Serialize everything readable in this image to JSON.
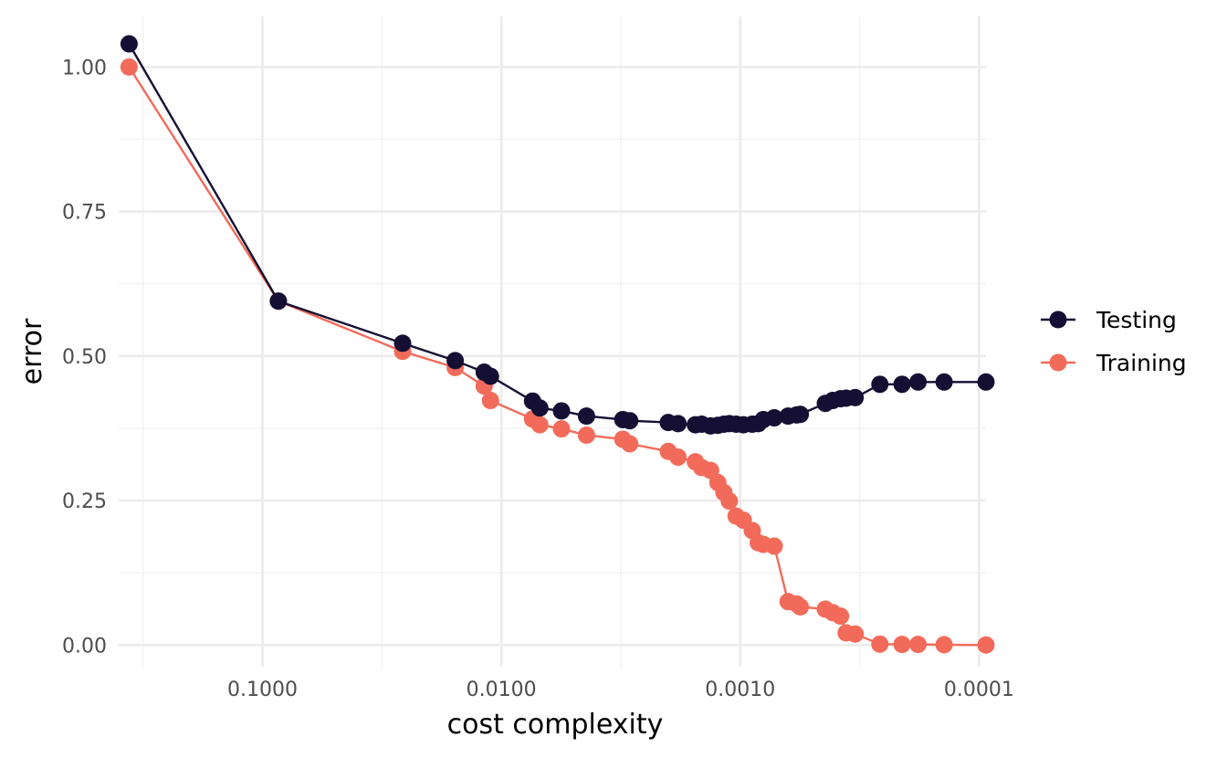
{
  "chart_data": {
    "type": "line",
    "xlabel": "cost complexity",
    "ylabel": "error",
    "x_scale": "log10-reversed",
    "xlim": [
      0.4,
      9.35e-05
    ],
    "ylim": [
      -0.0375,
      1.0875
    ],
    "x_ticks": [
      {
        "value": 0.1,
        "label": "0.1000"
      },
      {
        "value": 0.01,
        "label": "0.0100"
      },
      {
        "value": 0.001,
        "label": "0.0010"
      },
      {
        "value": 0.0001,
        "label": "0.0001"
      }
    ],
    "x_minor_ticks": [
      0.316,
      0.0316,
      0.00316,
      0.000316
    ],
    "y_ticks": [
      {
        "value": 0,
        "label": "0.00"
      },
      {
        "value": 0.25,
        "label": "0.25"
      },
      {
        "value": 0.5,
        "label": "0.50"
      },
      {
        "value": 0.75,
        "label": "0.75"
      },
      {
        "value": 1,
        "label": "1.00"
      }
    ],
    "y_minor_ticks": [
      0.125,
      0.375,
      0.625,
      0.875
    ],
    "grid": true,
    "legend_position": "right",
    "series": [
      {
        "name": "Testing",
        "color": "#140f33",
        "x": [
          0.3618,
          0.0858,
          0.0259,
          0.0156,
          0.0118,
          0.0111,
          0.0074,
          0.0069,
          0.0056,
          0.0044,
          0.0031,
          0.0029,
          0.002,
          0.00182,
          0.00154,
          0.00145,
          0.00133,
          0.00124,
          0.00117,
          0.00111,
          0.00104,
          0.00097,
          0.00089,
          0.00084,
          0.0008,
          0.00072,
          0.00063,
          0.00058,
          0.00056,
          0.00044,
          0.00041,
          0.00038,
          0.00036,
          0.00033,
          0.00026,
          0.00021,
          0.00018,
          0.00014,
          9.35e-05
        ],
        "y": [
          1.04,
          0.595,
          0.522,
          0.492,
          0.472,
          0.465,
          0.422,
          0.41,
          0.405,
          0.396,
          0.39,
          0.388,
          0.385,
          0.383,
          0.381,
          0.382,
          0.379,
          0.38,
          0.382,
          0.383,
          0.382,
          0.381,
          0.382,
          0.383,
          0.39,
          0.393,
          0.396,
          0.398,
          0.399,
          0.418,
          0.423,
          0.426,
          0.427,
          0.428,
          0.451,
          0.451,
          0.455,
          0.455,
          0.455
        ]
      },
      {
        "name": "Training",
        "color": "#f26b5a",
        "x": [
          0.3618,
          0.0858,
          0.0259,
          0.0156,
          0.0118,
          0.0111,
          0.0074,
          0.0069,
          0.0056,
          0.0044,
          0.0031,
          0.0029,
          0.002,
          0.00182,
          0.00154,
          0.00145,
          0.00133,
          0.00124,
          0.00117,
          0.00111,
          0.00104,
          0.00097,
          0.00089,
          0.00084,
          0.0008,
          0.00072,
          0.00063,
          0.00058,
          0.00056,
          0.00044,
          0.00041,
          0.00038,
          0.00036,
          0.00033,
          0.00026,
          0.00021,
          0.00018,
          0.00014,
          9.35e-05
        ],
        "y": [
          1.0,
          0.595,
          0.508,
          0.48,
          0.448,
          0.423,
          0.391,
          0.381,
          0.374,
          0.363,
          0.356,
          0.348,
          0.335,
          0.325,
          0.317,
          0.307,
          0.302,
          0.281,
          0.264,
          0.249,
          0.223,
          0.216,
          0.198,
          0.177,
          0.174,
          0.171,
          0.075,
          0.071,
          0.066,
          0.062,
          0.056,
          0.05,
          0.021,
          0.019,
          0.0015,
          0.001,
          0.001,
          0.0005,
          0.0
        ]
      }
    ]
  }
}
